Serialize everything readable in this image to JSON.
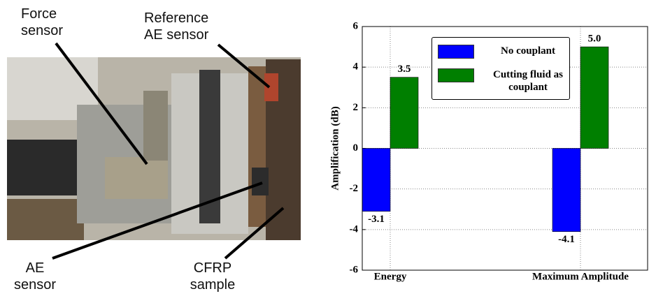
{
  "photo": {
    "labels": [
      "Force sensor",
      "Reference AE sensor",
      "AE sensor",
      "CFRP sample"
    ]
  },
  "chart_data": {
    "type": "bar",
    "ylabel": "Amplification (dB)",
    "categories": [
      "Energy",
      "Maximum Amplitude"
    ],
    "series": [
      {
        "name": "No couplant",
        "color": "#0000ff",
        "values": [
          -3.1,
          -4.1
        ]
      },
      {
        "name": "Cutting fluid as couplant",
        "color": "#007f00",
        "values": [
          3.5,
          5.0
        ],
        "value_labels": [
          "3.5",
          "5.0"
        ]
      }
    ],
    "ylim": [
      -6,
      6
    ],
    "yticks": [
      -6,
      -4,
      -2,
      0,
      2,
      4,
      6
    ],
    "grid": true,
    "legend": "upper right"
  }
}
